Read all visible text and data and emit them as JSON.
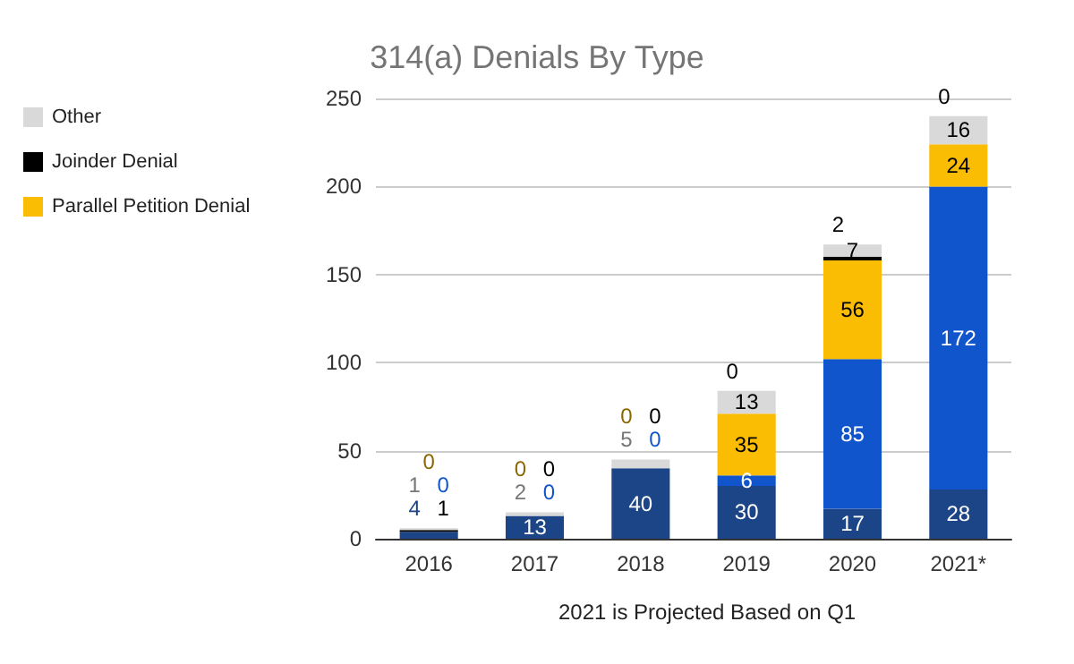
{
  "chart_data": {
    "type": "bar",
    "title": "314(a) Denials By Type",
    "stacked": true,
    "categories": [
      "2016",
      "2017",
      "2018",
      "2019",
      "2020",
      "2021*"
    ],
    "series": [
      {
        "color": "#1c4587",
        "values": [
          4,
          13,
          40,
          30,
          17,
          28
        ]
      },
      {
        "color": "#1155cc",
        "values": [
          0,
          0,
          0,
          6,
          85,
          172
        ]
      },
      {
        "name": "Parallel Petition Denial",
        "color": "#fbbc04",
        "values": [
          0,
          0,
          0,
          35,
          56,
          24
        ]
      },
      {
        "name": "Joinder Denial",
        "color": "#000000",
        "values": [
          1,
          0,
          0,
          0,
          2,
          0
        ]
      },
      {
        "name": "Other",
        "color": "#d9d9d9",
        "values": [
          1,
          2,
          5,
          13,
          7,
          16
        ]
      }
    ],
    "ylim": [
      0,
      250
    ],
    "yticks": [
      0,
      50,
      100,
      150,
      200,
      250
    ],
    "grid": "y",
    "legend": "left",
    "data_labels": true,
    "annotations": [
      "2021 is Projected Based on Q1"
    ]
  }
}
